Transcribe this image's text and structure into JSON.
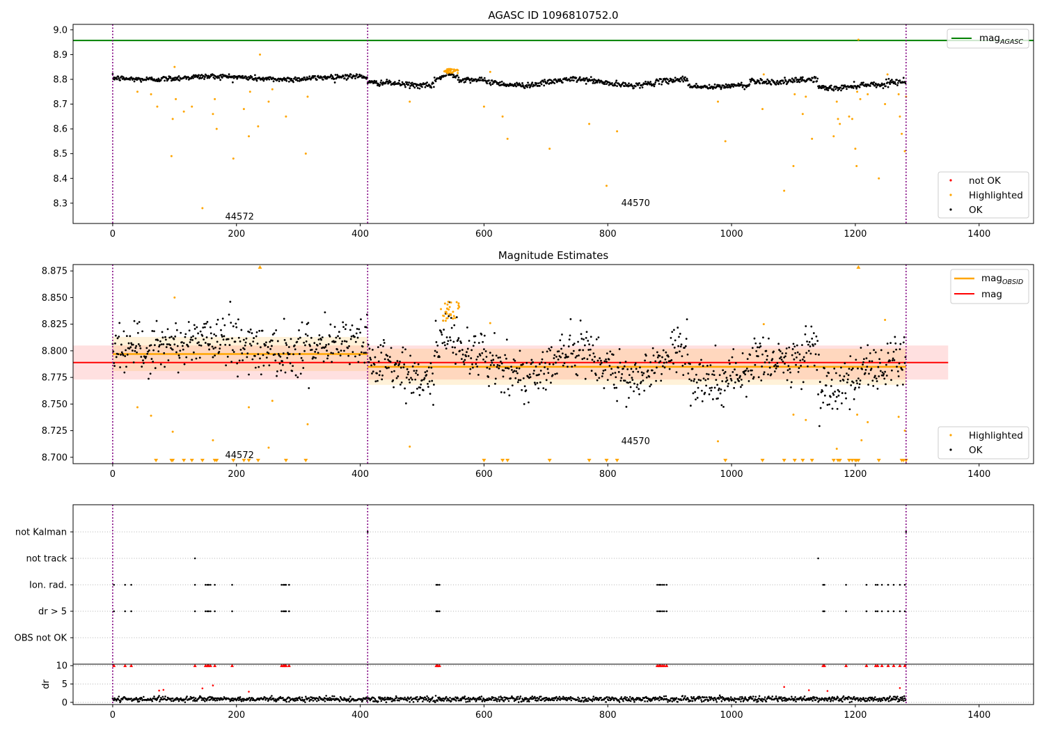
{
  "chart_data": [
    {
      "type": "scatter",
      "title": "AGASC ID 1096810752.0",
      "x_ticks": [
        0,
        200,
        400,
        600,
        800,
        1000,
        1200,
        1400
      ],
      "y_ticks": [
        "9.0",
        "8.9",
        "8.8",
        "8.7",
        "8.6",
        "8.5",
        "8.4",
        "8.3"
      ],
      "xlim": [
        -64,
        1488
      ],
      "ylim": [
        8.218,
        9.022
      ],
      "lines": [
        {
          "label": "mag",
          "label_sub": "AGASC",
          "y": 8.957,
          "color": "#008000"
        }
      ],
      "obsid_boundaries": [
        0,
        412,
        1282
      ],
      "obsid_labels": [
        {
          "text": "44572",
          "x": 205,
          "y": 8.245
        },
        {
          "text": "44570",
          "x": 845,
          "y": 8.3
        }
      ],
      "legend_upper": [
        {
          "label": "mag",
          "label_sub": "AGASC",
          "color": "#008000"
        }
      ],
      "legend_lower": [
        {
          "label": "not OK",
          "color": "#ff0000"
        },
        {
          "label": "Highlighted",
          "color": "#ffa500"
        },
        {
          "label": "OK",
          "color": "#000000"
        }
      ],
      "highlighted_points": [
        [
          40,
          8.75
        ],
        [
          62,
          8.74
        ],
        [
          72,
          8.69
        ],
        [
          95,
          8.49
        ],
        [
          97,
          8.64
        ],
        [
          100,
          8.85
        ],
        [
          102,
          8.72
        ],
        [
          115,
          8.67
        ],
        [
          128,
          8.69
        ],
        [
          145,
          8.28
        ],
        [
          162,
          8.66
        ],
        [
          165,
          8.72
        ],
        [
          168,
          8.6
        ],
        [
          195,
          8.48
        ],
        [
          212,
          8.68
        ],
        [
          220,
          8.57
        ],
        [
          222,
          8.75
        ],
        [
          235,
          8.61
        ],
        [
          238,
          8.9
        ],
        [
          252,
          8.71
        ],
        [
          258,
          8.76
        ],
        [
          280,
          8.65
        ],
        [
          312,
          8.5
        ],
        [
          315,
          8.73
        ],
        [
          480,
          8.71
        ],
        [
          600,
          8.69
        ],
        [
          610,
          8.83
        ],
        [
          630,
          8.65
        ],
        [
          638,
          8.56
        ],
        [
          706,
          8.52
        ],
        [
          770,
          8.62
        ],
        [
          798,
          8.37
        ],
        [
          815,
          8.59
        ],
        [
          978,
          8.71
        ],
        [
          990,
          8.55
        ],
        [
          1050,
          8.68
        ],
        [
          1052,
          8.82
        ],
        [
          1085,
          8.35
        ],
        [
          1100,
          8.45
        ],
        [
          1102,
          8.74
        ],
        [
          1115,
          8.66
        ],
        [
          1120,
          8.73
        ],
        [
          1130,
          8.56
        ],
        [
          1165,
          8.57
        ],
        [
          1170,
          8.71
        ],
        [
          1172,
          8.64
        ],
        [
          1175,
          8.62
        ],
        [
          1190,
          8.65
        ],
        [
          1195,
          8.64
        ],
        [
          1200,
          8.52
        ],
        [
          1202,
          8.45
        ],
        [
          1203,
          8.75
        ],
        [
          1205,
          8.96
        ],
        [
          1208,
          8.72
        ],
        [
          1220,
          8.74
        ],
        [
          1238,
          8.4
        ],
        [
          1248,
          8.7
        ],
        [
          1252,
          8.82
        ],
        [
          1270,
          8.74
        ],
        [
          1272,
          8.65
        ],
        [
          1275,
          8.58
        ],
        [
          1280,
          8.51
        ],
        [
          1282,
          8.73
        ]
      ],
      "highlighted_cluster": {
        "x_range": [
          535,
          560
        ],
        "y_range": [
          8.825,
          8.842
        ],
        "n": 30
      }
    },
    {
      "type": "scatter",
      "title": "Magnitude Estimates",
      "x_ticks": [
        0,
        200,
        400,
        600,
        800,
        1000,
        1200,
        1400
      ],
      "y_ticks": [
        "8.875",
        "8.850",
        "8.825",
        "8.800",
        "8.775",
        "8.750",
        "8.725",
        "8.700"
      ],
      "xlim": [
        -64,
        1488
      ],
      "ylim": [
        8.694,
        8.881
      ],
      "mean_mag": {
        "label": "mag",
        "y": 8.789,
        "band": [
          8.773,
          8.805
        ],
        "x_range": [
          -64,
          1350
        ],
        "color": "#ff0000"
      },
      "obsid_mags": [
        {
          "x_range": [
            0,
            412
          ],
          "y": 8.797,
          "band": [
            8.781,
            8.813
          ]
        },
        {
          "x_range": [
            412,
            1282
          ],
          "y": 8.785,
          "band": [
            8.768,
            8.802
          ]
        }
      ],
      "obsid_boundaries": [
        0,
        412,
        1282
      ],
      "obsid_labels": [
        {
          "text": "44572",
          "x": 205,
          "y": 8.702
        },
        {
          "text": "44570",
          "x": 845,
          "y": 8.715
        }
      ],
      "legend_upper": [
        {
          "label": "mag",
          "label_sub": "OBSID",
          "color": "#ffa500"
        },
        {
          "label": "mag",
          "color": "#ff0000"
        }
      ],
      "legend_lower": [
        {
          "label": "Highlighted",
          "color": "#ffa500"
        },
        {
          "label": "OK",
          "color": "#000000"
        }
      ],
      "highlighted_points": [
        [
          40,
          8.747
        ],
        [
          62,
          8.739
        ],
        [
          97,
          8.724
        ],
        [
          100,
          8.85
        ],
        [
          162,
          8.716
        ],
        [
          220,
          8.747
        ],
        [
          258,
          8.753
        ],
        [
          252,
          8.709
        ],
        [
          315,
          8.731
        ],
        [
          480,
          8.71
        ],
        [
          610,
          8.826
        ],
        [
          1052,
          8.825
        ],
        [
          978,
          8.715
        ],
        [
          1100,
          8.74
        ],
        [
          1120,
          8.735
        ],
        [
          1170,
          8.708
        ],
        [
          1203,
          8.74
        ],
        [
          1210,
          8.716
        ],
        [
          1220,
          8.733
        ],
        [
          1248,
          8.829
        ],
        [
          1270,
          8.738
        ],
        [
          1280,
          8.725
        ]
      ],
      "highlighted_cluster": {
        "x_range": [
          530,
          560
        ],
        "y_range": [
          8.826,
          8.846
        ],
        "n": 30
      },
      "below_range_markers": [
        70,
        95,
        97,
        115,
        128,
        145,
        165,
        168,
        195,
        212,
        220,
        235,
        280,
        312,
        600,
        630,
        638,
        706,
        770,
        798,
        815,
        990,
        1050,
        1085,
        1102,
        1115,
        1130,
        1165,
        1172,
        1175,
        1190,
        1195,
        1200,
        1202,
        1205,
        1238,
        1275,
        1278,
        1282
      ],
      "above_range_markers": [
        238,
        1205
      ]
    },
    {
      "type": "scatter",
      "categories": [
        "not Kalman",
        "not track",
        "Ion. rad.",
        "dr > 5",
        "OBS not OK"
      ],
      "x_ticks": [
        0,
        200,
        400,
        600,
        800,
        1000,
        1200,
        1400
      ],
      "xlim": [
        -64,
        1488
      ],
      "flags": {
        "not Kalman": [
          412,
          1282
        ],
        "not track": [
          133,
          1140
        ],
        "Ion. rad.": [
          2,
          20,
          30,
          133,
          150,
          153,
          155,
          158,
          165,
          193,
          273,
          276,
          278,
          280,
          285,
          523,
          525,
          528,
          880,
          883,
          885,
          888,
          891,
          895,
          1148,
          1150,
          1185,
          1218,
          1233,
          1236,
          1243,
          1253,
          1262,
          1272,
          1280
        ],
        "dr > 5": [
          2,
          20,
          30,
          133,
          150,
          153,
          155,
          158,
          165,
          193,
          273,
          276,
          278,
          280,
          285,
          523,
          525,
          528,
          880,
          883,
          885,
          888,
          891,
          895,
          1148,
          1150,
          1185,
          1218,
          1233,
          1236,
          1243,
          1253,
          1262,
          1272,
          1280
        ],
        "OBS not OK": []
      },
      "obsid_boundaries": [
        0,
        412,
        1282
      ]
    },
    {
      "type": "scatter",
      "ylabel": "dr",
      "y_ticks": [
        "10",
        "5",
        "0"
      ],
      "x_ticks": [
        0,
        200,
        400,
        600,
        800,
        1000,
        1200,
        1400
      ],
      "xlim": [
        -64,
        1488
      ],
      "ylim": [
        -0.6,
        10.4
      ],
      "capped_at": 10,
      "red_points": [
        [
          75,
          3.2
        ],
        [
          82,
          3.4
        ],
        [
          145,
          3.8
        ],
        [
          162,
          4.6
        ],
        [
          220,
          2.9
        ],
        [
          1085,
          4.2
        ],
        [
          1125,
          3.3
        ],
        [
          1155,
          3.1
        ],
        [
          1272,
          3.9
        ]
      ],
      "obsid_boundaries": [
        0,
        412,
        1282
      ]
    }
  ]
}
